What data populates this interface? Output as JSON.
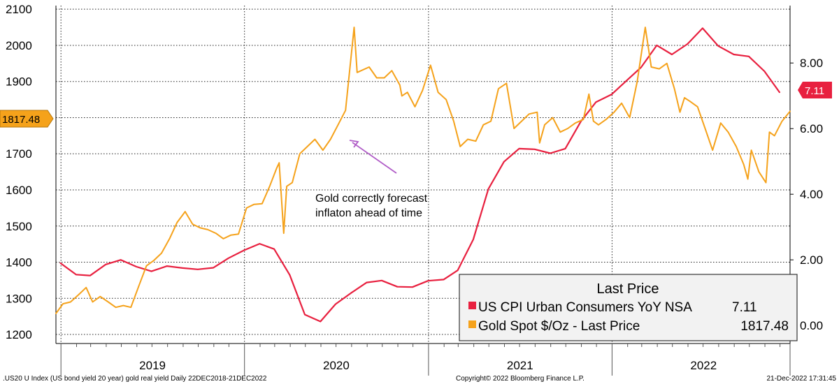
{
  "chart_data": {
    "type": "line",
    "footer": {
      "source": ".US20 U Index (US bond yield 20 year) gold real yield  Daily 22DEC2018-21DEC2022",
      "copyright": "Copyright© 2022 Bloomberg Finance L.P.",
      "timestamp": "21-Dec-2022 17:31:45"
    },
    "x_axis": {
      "years": [
        "2019",
        "2020",
        "2021",
        "2022"
      ],
      "range": [
        "2018-12-22",
        "2022-12-21"
      ]
    },
    "y_left": {
      "ticks": [
        "1200",
        "1300",
        "1400",
        "1500",
        "1600",
        "1700",
        "1800",
        "1900",
        "2000",
        "2100"
      ],
      "range": [
        1175,
        2110
      ]
    },
    "y_right": {
      "ticks": [
        "0.00",
        "2.00",
        "4.00",
        "6.00",
        "8.00"
      ],
      "range": [
        -0.55,
        9.75
      ]
    },
    "grid": true,
    "legend": {
      "title": "Last Price",
      "placement": "bottom-right",
      "entries": [
        {
          "name": "US CPI Urban Consumers YoY NSA",
          "last": "7.11",
          "color": "#e8203f"
        },
        {
          "name": "Gold Spot $/Oz - Last Price",
          "last": "1817.48",
          "color": "#f5a21b"
        }
      ]
    },
    "last_value_badges": [
      {
        "label": "1817.48",
        "axis": "left",
        "color": "#f5a21b"
      },
      {
        "label": "7.11",
        "axis": "right",
        "color": "#e8203f"
      }
    ],
    "annotation": {
      "lines": [
        "Gold correctly forecast",
        "inflaton ahead of time"
      ],
      "arrow_color": "#b05cc7"
    },
    "series": [
      {
        "name": "US CPI Urban Consumers YoY NSA",
        "axis": "right",
        "color": "#e8203f",
        "x": [
          "2018-12-31",
          "2019-01-31",
          "2019-02-28",
          "2019-03-31",
          "2019-04-30",
          "2019-05-31",
          "2019-06-30",
          "2019-07-31",
          "2019-08-31",
          "2019-09-30",
          "2019-10-31",
          "2019-11-30",
          "2019-12-31",
          "2020-01-31",
          "2020-02-29",
          "2020-03-31",
          "2020-04-30",
          "2020-05-31",
          "2020-06-30",
          "2020-07-31",
          "2020-08-31",
          "2020-09-30",
          "2020-10-31",
          "2020-11-30",
          "2020-12-31",
          "2021-01-31",
          "2021-02-28",
          "2021-03-31",
          "2021-04-30",
          "2021-05-31",
          "2021-06-30",
          "2021-07-31",
          "2021-08-31",
          "2021-09-30",
          "2021-10-31",
          "2021-11-30",
          "2021-12-31",
          "2022-01-31",
          "2022-02-28",
          "2022-03-31",
          "2022-04-30",
          "2022-05-31",
          "2022-06-30",
          "2022-07-31",
          "2022-08-31",
          "2022-09-30",
          "2022-10-31",
          "2022-11-30"
        ],
        "values": [
          1.9,
          1.55,
          1.52,
          1.86,
          2.0,
          1.79,
          1.65,
          1.81,
          1.75,
          1.71,
          1.76,
          2.05,
          2.29,
          2.49,
          2.33,
          1.54,
          0.33,
          0.12,
          0.65,
          0.99,
          1.31,
          1.37,
          1.18,
          1.17,
          1.36,
          1.4,
          1.68,
          2.62,
          4.16,
          4.99,
          5.39,
          5.37,
          5.25,
          5.39,
          6.22,
          6.81,
          7.04,
          7.48,
          7.87,
          8.54,
          8.26,
          8.58,
          9.06,
          8.52,
          8.26,
          8.2,
          7.75,
          7.11
        ]
      },
      {
        "name": "Gold Spot $/Oz - Last Price",
        "axis": "left",
        "color": "#f5a21b",
        "x": [
          "2018-12-22",
          "2019-01-05",
          "2019-01-20",
          "2019-02-05",
          "2019-02-20",
          "2019-03-05",
          "2019-03-20",
          "2019-04-05",
          "2019-04-20",
          "2019-05-05",
          "2019-05-20",
          "2019-06-05",
          "2019-06-20",
          "2019-07-05",
          "2019-07-20",
          "2019-08-05",
          "2019-08-20",
          "2019-09-05",
          "2019-09-20",
          "2019-10-05",
          "2019-10-20",
          "2019-11-05",
          "2019-11-20",
          "2019-12-05",
          "2019-12-20",
          "2020-01-05",
          "2020-01-20",
          "2020-02-05",
          "2020-02-20",
          "2020-03-05",
          "2020-03-10",
          "2020-03-19",
          "2020-03-25",
          "2020-04-05",
          "2020-04-20",
          "2020-05-05",
          "2020-05-20",
          "2020-06-05",
          "2020-06-20",
          "2020-07-05",
          "2020-07-20",
          "2020-08-06",
          "2020-08-12",
          "2020-08-20",
          "2020-09-05",
          "2020-09-20",
          "2020-10-05",
          "2020-10-20",
          "2020-11-05",
          "2020-11-09",
          "2020-11-20",
          "2020-12-05",
          "2020-12-20",
          "2021-01-05",
          "2021-01-20",
          "2021-02-05",
          "2021-02-20",
          "2021-03-05",
          "2021-03-20",
          "2021-04-05",
          "2021-04-20",
          "2021-05-05",
          "2021-05-20",
          "2021-06-05",
          "2021-06-20",
          "2021-07-05",
          "2021-07-20",
          "2021-08-05",
          "2021-08-10",
          "2021-08-20",
          "2021-09-05",
          "2021-09-20",
          "2021-10-05",
          "2021-10-20",
          "2021-11-05",
          "2021-11-16",
          "2021-11-25",
          "2021-12-05",
          "2021-12-20",
          "2022-01-05",
          "2022-01-20",
          "2022-02-05",
          "2022-02-20",
          "2022-03-08",
          "2022-03-20",
          "2022-04-05",
          "2022-04-20",
          "2022-05-05",
          "2022-05-16",
          "2022-05-25",
          "2022-06-05",
          "2022-06-20",
          "2022-07-05",
          "2022-07-20",
          "2022-08-05",
          "2022-08-20",
          "2022-09-05",
          "2022-09-20",
          "2022-09-28",
          "2022-10-05",
          "2022-10-20",
          "2022-11-03",
          "2022-11-10",
          "2022-11-20",
          "2022-12-05",
          "2022-12-21"
        ],
        "values": [
          1258,
          1285,
          1290,
          1310,
          1330,
          1290,
          1305,
          1290,
          1275,
          1280,
          1275,
          1335,
          1390,
          1405,
          1425,
          1465,
          1510,
          1540,
          1505,
          1495,
          1490,
          1480,
          1465,
          1475,
          1478,
          1550,
          1560,
          1562,
          1610,
          1660,
          1675,
          1480,
          1610,
          1620,
          1700,
          1720,
          1740,
          1710,
          1740,
          1780,
          1820,
          2050,
          1925,
          1930,
          1940,
          1910,
          1910,
          1930,
          1890,
          1860,
          1870,
          1830,
          1875,
          1945,
          1870,
          1850,
          1790,
          1720,
          1740,
          1735,
          1780,
          1790,
          1880,
          1895,
          1770,
          1790,
          1810,
          1815,
          1730,
          1780,
          1800,
          1760,
          1770,
          1785,
          1795,
          1865,
          1790,
          1780,
          1795,
          1815,
          1840,
          1800,
          1900,
          2050,
          1940,
          1935,
          1950,
          1880,
          1815,
          1855,
          1845,
          1830,
          1770,
          1710,
          1785,
          1760,
          1720,
          1670,
          1630,
          1710,
          1650,
          1620,
          1760,
          1750,
          1790,
          1817.48
        ]
      }
    ]
  }
}
